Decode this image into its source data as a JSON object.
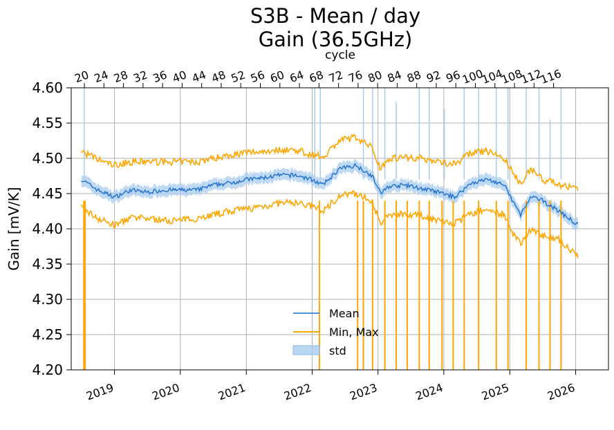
{
  "chart_data": {
    "type": "line",
    "title": "S3B - Mean / day",
    "subtitle": "Gain (36.5GHz)",
    "ylabel": "Gain [mV/K]",
    "xlabel": "",
    "top_xlabel": "cycle",
    "ylim": [
      4.2,
      4.6
    ],
    "xlim": [
      "2018-05-06",
      "2026-07-02"
    ],
    "y_ticks": [
      "4.20",
      "4.25",
      "4.30",
      "4.35",
      "4.40",
      "4.45",
      "4.50",
      "4.55",
      "4.60"
    ],
    "x_ticks": [
      {
        "label": "2019",
        "date": "2019-01-01"
      },
      {
        "label": "2020",
        "date": "2020-01-01"
      },
      {
        "label": "2021",
        "date": "2021-01-01"
      },
      {
        "label": "2022",
        "date": "2022-01-01"
      },
      {
        "label": "2023",
        "date": "2023-01-01"
      },
      {
        "label": "2024",
        "date": "2024-01-01"
      },
      {
        "label": "2025",
        "date": "2025-01-01"
      },
      {
        "label": "2026",
        "date": "2026-01-01"
      }
    ],
    "cycle_ticks": {
      "labels": [
        "20",
        "24",
        "28",
        "32",
        "36",
        "40",
        "44",
        "48",
        "52",
        "56",
        "60",
        "64",
        "68",
        "72",
        "76",
        "80",
        "84",
        "88",
        "92",
        "96",
        "100",
        "104",
        "108",
        "112",
        "116"
      ],
      "first_date": "2018-07-18",
      "step_days": 108.4
    },
    "grid": true,
    "legend": {
      "position": "lower-center",
      "entries": [
        "Mean",
        "Min, Max",
        "std"
      ]
    },
    "colors": {
      "mean": "#1f6fce",
      "minmax": "#ffa500",
      "std": "#a8ccef",
      "grid": "#b0b0b0"
    },
    "series": [
      {
        "name": "Mean",
        "x": [
          "2018-07-01",
          "2018-10-01",
          "2019-01-01",
          "2019-04-01",
          "2019-07-01",
          "2019-10-01",
          "2020-01-01",
          "2020-04-01",
          "2020-07-01",
          "2020-10-01",
          "2021-01-01",
          "2021-04-01",
          "2021-07-01",
          "2021-10-01",
          "2022-01-01",
          "2022-03-01",
          "2022-06-01",
          "2022-09-01",
          "2022-12-01",
          "2023-01-15",
          "2023-03-01",
          "2023-06-01",
          "2023-09-01",
          "2023-12-01",
          "2024-03-01",
          "2024-06-01",
          "2024-09-01",
          "2024-12-01",
          "2025-01-15",
          "2025-03-01",
          "2025-05-01",
          "2025-07-01",
          "2025-10-01",
          "2026-01-15"
        ],
        "values": [
          4.47,
          4.455,
          4.445,
          4.455,
          4.452,
          4.455,
          4.455,
          4.455,
          4.462,
          4.465,
          4.47,
          4.472,
          4.476,
          4.476,
          4.47,
          4.462,
          4.485,
          4.49,
          4.475,
          4.45,
          4.46,
          4.462,
          4.457,
          4.452,
          4.445,
          4.465,
          4.47,
          4.462,
          4.44,
          4.42,
          4.445,
          4.44,
          4.425,
          4.405
        ]
      },
      {
        "name": "Min",
        "x": [
          "2018-07-01",
          "2018-10-01",
          "2019-01-01",
          "2019-04-01",
          "2019-07-01",
          "2019-10-01",
          "2020-01-01",
          "2020-04-01",
          "2020-07-01",
          "2020-10-01",
          "2021-01-01",
          "2021-04-01",
          "2021-07-01",
          "2021-10-01",
          "2022-01-01",
          "2022-03-01",
          "2022-06-01",
          "2022-09-01",
          "2022-12-01",
          "2023-01-15",
          "2023-03-01",
          "2023-06-01",
          "2023-09-01",
          "2023-12-01",
          "2024-03-01",
          "2024-06-01",
          "2024-09-01",
          "2024-12-01",
          "2025-01-15",
          "2025-03-01",
          "2025-05-01",
          "2025-07-01",
          "2025-10-01",
          "2026-01-15"
        ],
        "values": [
          4.43,
          4.415,
          4.405,
          4.415,
          4.415,
          4.412,
          4.412,
          4.415,
          4.42,
          4.425,
          4.428,
          4.432,
          4.436,
          4.437,
          4.432,
          4.425,
          4.447,
          4.45,
          4.44,
          4.405,
          4.42,
          4.422,
          4.418,
          4.412,
          4.407,
          4.422,
          4.428,
          4.42,
          4.392,
          4.38,
          4.4,
          4.39,
          4.385,
          4.36
        ]
      },
      {
        "name": "Max",
        "x": [
          "2018-07-01",
          "2018-10-01",
          "2019-01-01",
          "2019-04-01",
          "2019-07-01",
          "2019-10-01",
          "2020-01-01",
          "2020-04-01",
          "2020-07-01",
          "2020-10-01",
          "2021-01-01",
          "2021-04-01",
          "2021-07-01",
          "2021-10-01",
          "2022-01-01",
          "2022-03-01",
          "2022-06-01",
          "2022-09-01",
          "2022-12-01",
          "2023-01-15",
          "2023-03-01",
          "2023-06-01",
          "2023-09-01",
          "2023-12-01",
          "2024-03-01",
          "2024-06-01",
          "2024-09-01",
          "2024-12-01",
          "2025-01-15",
          "2025-03-01",
          "2025-05-01",
          "2025-07-01",
          "2025-10-01",
          "2026-01-15"
        ],
        "values": [
          4.51,
          4.498,
          4.49,
          4.495,
          4.495,
          4.495,
          4.495,
          4.495,
          4.5,
          4.505,
          4.508,
          4.51,
          4.512,
          4.512,
          4.505,
          4.502,
          4.525,
          4.53,
          4.515,
          4.485,
          4.5,
          4.502,
          4.5,
          4.495,
          4.492,
          4.508,
          4.51,
          4.5,
          4.48,
          4.465,
          4.485,
          4.47,
          4.463,
          4.455
        ]
      }
    ],
    "std_halfwidth": 0.008,
    "minmax_drops": [
      "2018-07-15",
      "2018-07-22",
      "2022-02-10",
      "2022-09-10",
      "2022-10-12",
      "2022-12-02",
      "2023-02-08",
      "2023-04-12",
      "2023-06-12",
      "2023-08-18",
      "2023-10-12",
      "2023-12-22",
      "2024-02-22",
      "2024-04-23",
      "2024-07-12",
      "2024-10-18",
      "2024-12-22",
      "2025-04-02",
      "2025-06-12",
      "2025-08-12",
      "2025-10-12"
    ],
    "std_spikes": [
      {
        "date": "2018-07-17",
        "top": 4.6
      },
      {
        "date": "2022-01-16",
        "top": 4.6
      },
      {
        "date": "2022-02-15",
        "top": 4.6
      },
      {
        "date": "2022-10-12",
        "top": 4.6
      },
      {
        "date": "2022-12-02",
        "top": 4.6
      },
      {
        "date": "2023-02-08",
        "top": 4.6
      },
      {
        "date": "2023-04-12",
        "top": 4.58
      },
      {
        "date": "2023-08-18",
        "top": 4.6
      },
      {
        "date": "2023-10-12",
        "top": 4.6
      },
      {
        "date": "2024-01-04",
        "top": 4.57
      },
      {
        "date": "2024-04-23",
        "top": 4.6
      },
      {
        "date": "2024-07-12",
        "top": 4.6
      },
      {
        "date": "2024-10-18",
        "top": 4.6
      },
      {
        "date": "2024-12-22",
        "top": 4.6
      },
      {
        "date": "2025-04-02",
        "top": 4.6
      },
      {
        "date": "2025-06-12",
        "top": 4.6
      },
      {
        "date": "2025-08-12",
        "top": 4.555
      },
      {
        "date": "2025-10-12",
        "top": 4.6
      }
    ]
  }
}
